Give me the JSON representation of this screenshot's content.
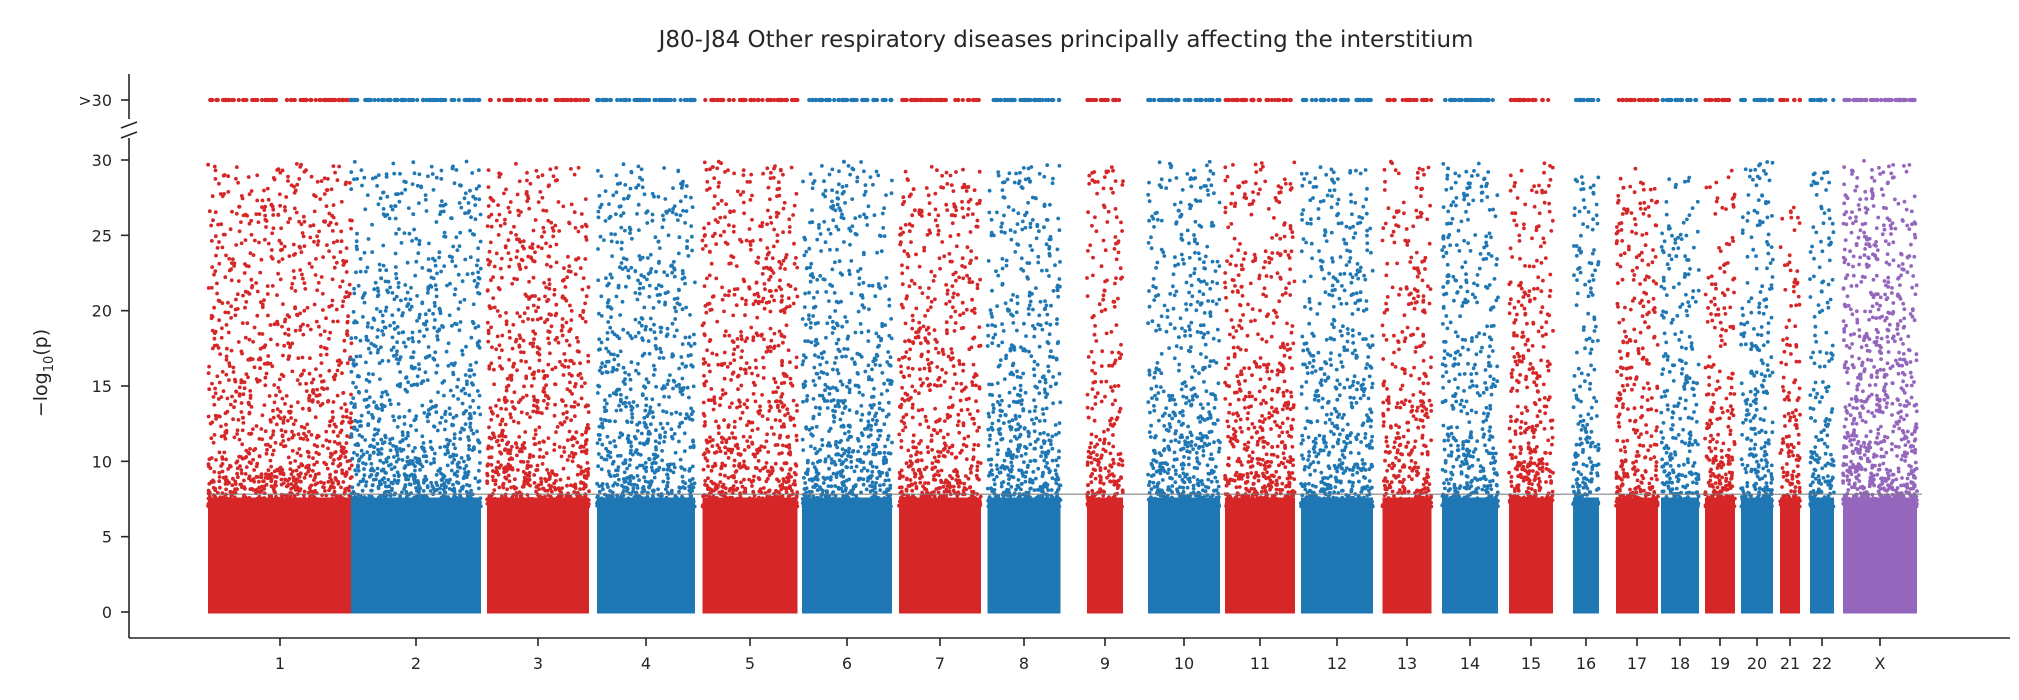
{
  "chart_data": {
    "type": "scatter",
    "subtype": "manhattan",
    "title": "J80-J84 Other respiratory diseases principally affecting the interstitium",
    "ylabel": "−log",
    "ylabel_sub": "10",
    "ylabel_tail": "(p)",
    "xlabel": "",
    "ylim": [
      0,
      30
    ],
    "yticks": [
      0,
      5,
      10,
      15,
      20,
      25,
      30
    ],
    "ytick_labels": [
      "0",
      "5",
      "10",
      "15",
      "20",
      "25",
      "30"
    ],
    "capped_label": ">30",
    "capped_value": 30,
    "significance_threshold": 7.82,
    "grid": false,
    "legend": "none",
    "axis_break": true,
    "colors": {
      "odd": "#d62728",
      "even": "#1f77b4",
      "X": "#9467bd",
      "threshold": "#777777",
      "axis": "#262626"
    },
    "chromosomes": [
      {
        "label": "1",
        "color": "odd",
        "max_y": 29.8,
        "density": 1.0,
        "capped": true
      },
      {
        "label": "2",
        "color": "even",
        "max_y": 29.9,
        "density": 1.0,
        "capped": true
      },
      {
        "label": "3",
        "color": "odd",
        "max_y": 29.8,
        "density": 1.0,
        "capped": true
      },
      {
        "label": "4",
        "color": "even",
        "max_y": 29.8,
        "density": 1.0,
        "capped": true
      },
      {
        "label": "5",
        "color": "odd",
        "max_y": 29.9,
        "density": 1.0,
        "capped": true
      },
      {
        "label": "6",
        "color": "even",
        "max_y": 29.9,
        "density": 1.0,
        "capped": true
      },
      {
        "label": "7",
        "color": "odd",
        "max_y": 29.8,
        "density": 1.0,
        "capped": true
      },
      {
        "label": "8",
        "color": "even",
        "max_y": 29.7,
        "density": 1.0,
        "capped": true
      },
      {
        "label": "9",
        "color": "odd",
        "max_y": 29.7,
        "density": 0.9,
        "capped": true
      },
      {
        "label": "10",
        "color": "even",
        "max_y": 29.9,
        "density": 1.0,
        "capped": true
      },
      {
        "label": "11",
        "color": "odd",
        "max_y": 29.9,
        "density": 1.0,
        "capped": true
      },
      {
        "label": "12",
        "color": "even",
        "max_y": 29.6,
        "density": 1.0,
        "capped": true
      },
      {
        "label": "13",
        "color": "odd",
        "max_y": 29.9,
        "density": 0.9,
        "capped": true
      },
      {
        "label": "14",
        "color": "even",
        "max_y": 29.8,
        "density": 1.0,
        "capped": true
      },
      {
        "label": "15",
        "color": "odd",
        "max_y": 29.8,
        "density": 1.0,
        "capped": true
      },
      {
        "label": "16",
        "color": "even",
        "max_y": 28.9,
        "density": 0.9,
        "capped": true
      },
      {
        "label": "17",
        "color": "odd",
        "max_y": 29.9,
        "density": 1.0,
        "capped": true
      },
      {
        "label": "18",
        "color": "even",
        "max_y": 29.4,
        "density": 0.9,
        "capped": true
      },
      {
        "label": "19",
        "color": "odd",
        "max_y": 29.3,
        "density": 1.0,
        "capped": true
      },
      {
        "label": "20",
        "color": "even",
        "max_y": 29.9,
        "density": 1.0,
        "capped": true
      },
      {
        "label": "21",
        "color": "odd",
        "max_y": 27.0,
        "density": 0.9,
        "capped": true
      },
      {
        "label": "22",
        "color": "even",
        "max_y": 29.6,
        "density": 1.0,
        "capped": true
      },
      {
        "label": "X",
        "color": "X",
        "max_y": 30.0,
        "density": 1.35,
        "capped": true
      }
    ]
  }
}
